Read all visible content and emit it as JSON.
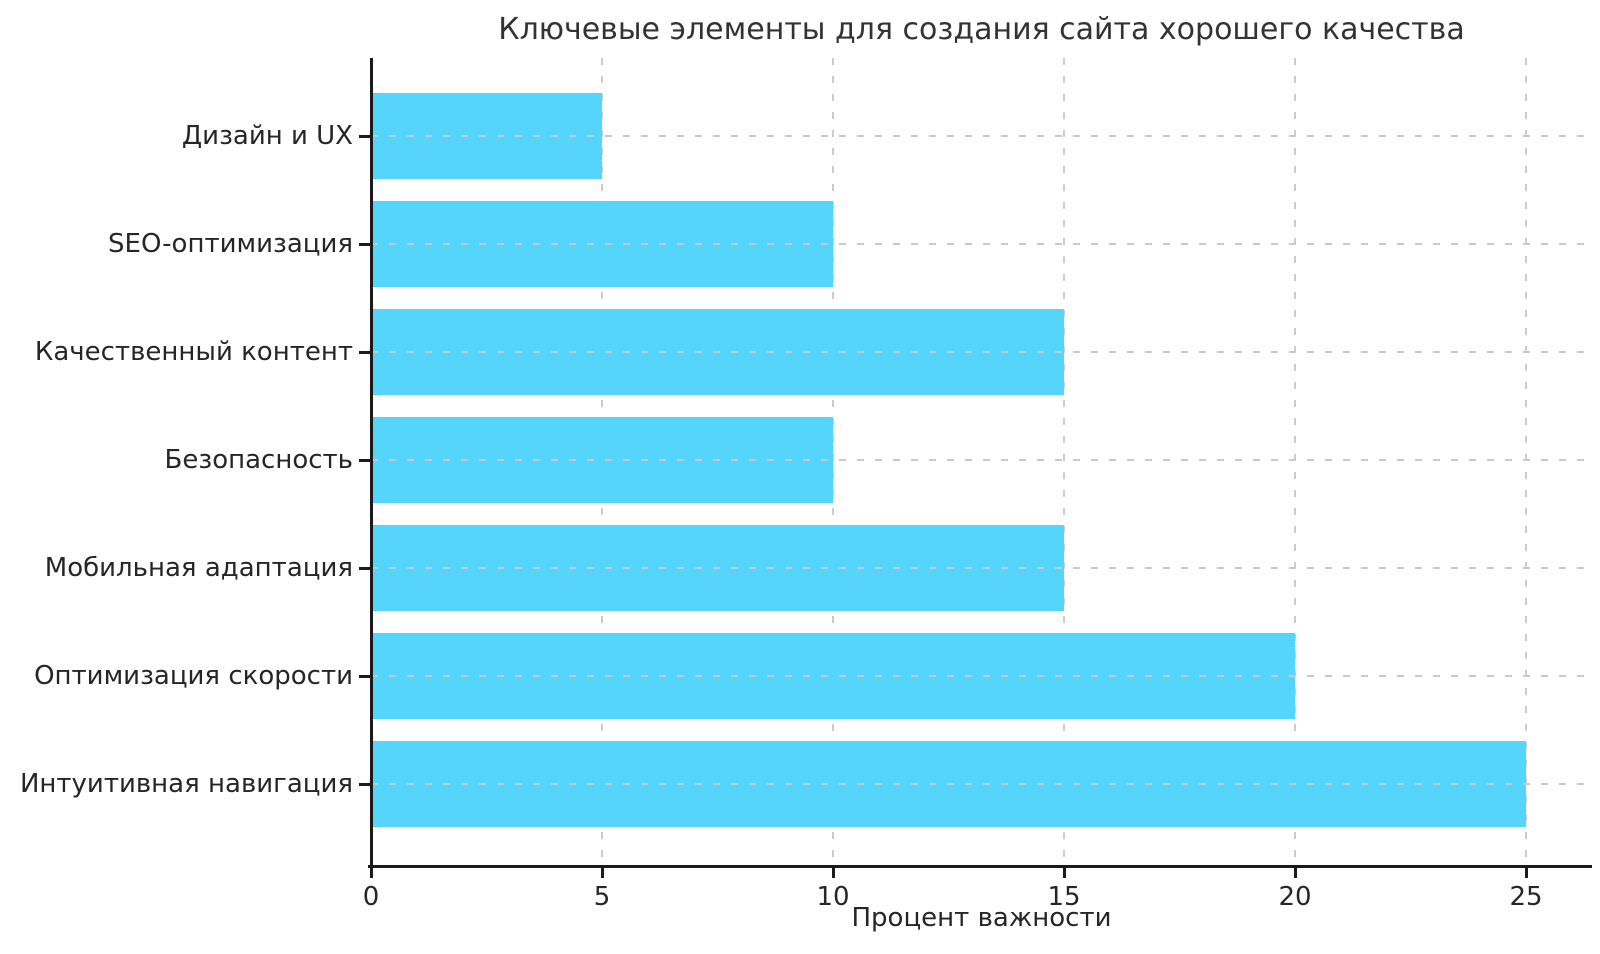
{
  "chart_data": {
    "type": "bar",
    "orientation": "horizontal",
    "title": "Ключевые элементы для создания сайта хорошего качества",
    "categories": [
      "Дизайн и UX",
      "SEO-оптимизация",
      "Качественный контент",
      "Безопасность",
      "Мобильная адаптация",
      "Оптимизация скорости",
      "Интуитивная навигация"
    ],
    "values": [
      5,
      10,
      15,
      10,
      15,
      20,
      25
    ],
    "xlabel": "Процент важности",
    "ylabel": "",
    "xticks": [
      0,
      5,
      10,
      15,
      20,
      25
    ],
    "xlim": [
      0,
      26.4
    ],
    "grid": "dashed, both axes",
    "legend": "none",
    "bar_color": "#55D5FA",
    "grid_color": "#cccccc",
    "axis_color": "#1a1a1a",
    "text_color": "#262626",
    "title_color": "#333333",
    "background_color": "#ffffff"
  }
}
